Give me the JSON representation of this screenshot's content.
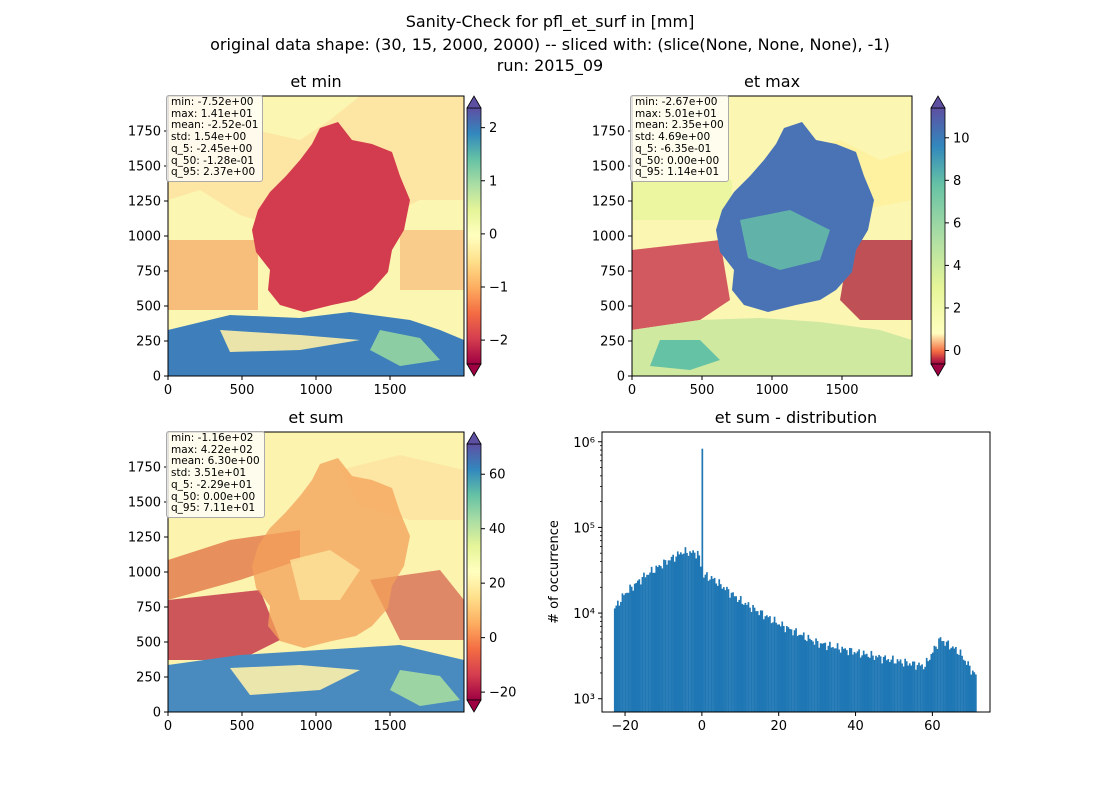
{
  "figure": {
    "title_lines": [
      "Sanity-Check for pfl_et_surf in [mm]",
      "original data shape: (30, 15, 2000, 2000) -- sliced with: (slice(None, None, None), -1)",
      "run: 2015_09"
    ]
  },
  "maps": [
    {
      "title": "et min",
      "xticks": [
        "0",
        "500",
        "1000",
        "1500"
      ],
      "yticks": [
        "0",
        "250",
        "500",
        "750",
        "1000",
        "1250",
        "1500",
        "1750"
      ],
      "stats": [
        "min: -7.52e+00",
        "max: 1.41e+01",
        "mean: -2.52e-01",
        "std: 1.54e+00",
        "q_5: -2.45e+00",
        "q_50: -1.28e-01",
        "q_95: 2.37e+00"
      ],
      "colorbar": {
        "vmin": -2.45,
        "vmax": 2.37,
        "ticks": [
          -2,
          -1,
          0,
          1,
          2
        ],
        "tick_labels": [
          "−2",
          "−1",
          "0",
          "1",
          "2"
        ]
      },
      "land_color": "#d23c4e"
    },
    {
      "title": "et max",
      "xticks": [
        "0",
        "500",
        "1000",
        "1500"
      ],
      "yticks": [
        "0",
        "250",
        "500",
        "750",
        "1000",
        "1250",
        "1500",
        "1750"
      ],
      "stats": [
        "min: -2.67e+00",
        "max: 5.01e+01",
        "mean: 2.35e+00",
        "std: 4.69e+00",
        "q_5: -6.35e-01",
        "q_50: 0.00e+00",
        "q_95: 1.14e+01"
      ],
      "colorbar": {
        "vmin": -0.635,
        "vmax": 11.4,
        "ticks": [
          0,
          2,
          4,
          6,
          8,
          10
        ],
        "tick_labels": [
          "0",
          "2",
          "4",
          "6",
          "8",
          "10"
        ]
      },
      "land_color": "#4a73b5"
    },
    {
      "title": "et sum",
      "xticks": [
        "0",
        "500",
        "1000",
        "1500"
      ],
      "yticks": [
        "0",
        "250",
        "500",
        "750",
        "1000",
        "1250",
        "1500",
        "1750"
      ],
      "stats": [
        "min: -1.16e+02",
        "max: 4.22e+02",
        "mean: 6.30e+00",
        "std: 3.51e+01",
        "q_5: -2.29e+01",
        "q_50: 0.00e+00",
        "q_95: 7.11e+01"
      ],
      "colorbar": {
        "vmin": -22.9,
        "vmax": 71.1,
        "ticks": [
          -20,
          0,
          20,
          40,
          60
        ],
        "tick_labels": [
          "−20",
          "0",
          "20",
          "40",
          "60"
        ]
      },
      "land_color": "#f4a05a"
    }
  ],
  "chart_data": {
    "type": "bar",
    "title": "et sum - distribution",
    "xlabel": "",
    "ylabel": "# of occurrence",
    "y_scale": "log",
    "xlim": [
      -26,
      75
    ],
    "ylim": [
      700,
      1300000
    ],
    "bar_color": "#1f77b4",
    "xticks": [
      -20,
      0,
      20,
      40,
      60
    ],
    "xtick_labels": [
      "−20",
      "0",
      "20",
      "40",
      "60"
    ],
    "yticks": [
      1000,
      10000,
      100000,
      1000000
    ],
    "ytick_labels": [
      "10³",
      "10⁴",
      "10⁵",
      "10⁶"
    ],
    "bin_start": -22.9,
    "bin_width": 0.4,
    "peak_bin": {
      "x": 0.0,
      "count": 830000
    },
    "profile": [
      {
        "x": -22.9,
        "count": 11000
      },
      {
        "x": -20,
        "count": 17000
      },
      {
        "x": -15,
        "count": 27000
      },
      {
        "x": -10,
        "count": 38000
      },
      {
        "x": -5,
        "count": 52000
      },
      {
        "x": -1,
        "count": 50000
      },
      {
        "x": 0.3,
        "count": 28000
      },
      {
        "x": 3,
        "count": 25000
      },
      {
        "x": 10,
        "count": 14000
      },
      {
        "x": 20,
        "count": 7500
      },
      {
        "x": 30,
        "count": 4500
      },
      {
        "x": 40,
        "count": 3500
      },
      {
        "x": 50,
        "count": 2800
      },
      {
        "x": 58,
        "count": 2400
      },
      {
        "x": 62,
        "count": 5000
      },
      {
        "x": 67,
        "count": 3500
      },
      {
        "x": 71.1,
        "count": 1900
      }
    ]
  }
}
